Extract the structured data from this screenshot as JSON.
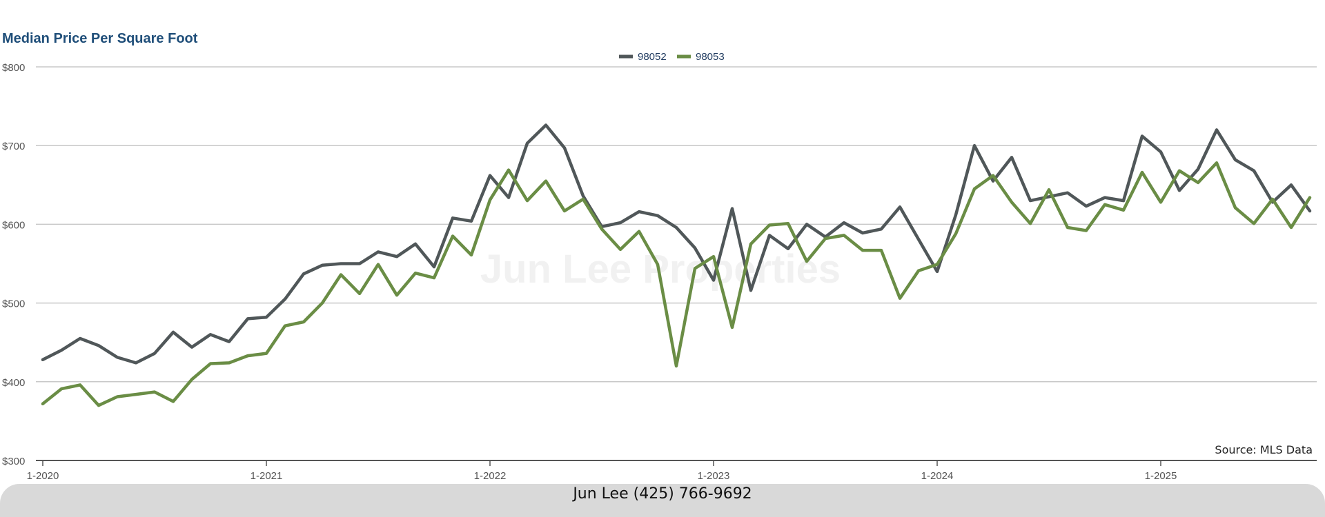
{
  "chart_data": {
    "type": "line",
    "title": "Median Price Per Square Foot",
    "ylim": [
      300,
      800
    ],
    "y_ticks": [
      300,
      400,
      500,
      600,
      700,
      800
    ],
    "y_tick_labels": [
      "$300",
      "$400",
      "$500",
      "$600",
      "$700",
      "$800"
    ],
    "x_tick_labels": [
      "1-2020",
      "1-2021",
      "1-2022",
      "1-2023",
      "1-2024",
      "1-2025"
    ],
    "x_tick_indices": [
      0,
      12,
      24,
      36,
      48,
      60
    ],
    "grid": true,
    "legend": "top-center",
    "x": [
      "1-2020",
      "2-2020",
      "3-2020",
      "4-2020",
      "5-2020",
      "6-2020",
      "7-2020",
      "8-2020",
      "9-2020",
      "10-2020",
      "11-2020",
      "12-2020",
      "1-2021",
      "2-2021",
      "3-2021",
      "4-2021",
      "5-2021",
      "6-2021",
      "7-2021",
      "8-2021",
      "9-2021",
      "10-2021",
      "11-2021",
      "12-2021",
      "1-2022",
      "2-2022",
      "3-2022",
      "4-2022",
      "5-2022",
      "6-2022",
      "7-2022",
      "8-2022",
      "9-2022",
      "10-2022",
      "11-2022",
      "12-2022",
      "1-2023",
      "2-2023",
      "3-2023",
      "4-2023",
      "5-2023",
      "6-2023",
      "7-2023",
      "8-2023",
      "9-2023",
      "10-2023",
      "11-2023",
      "12-2023",
      "1-2024",
      "2-2024",
      "3-2024",
      "4-2024",
      "5-2024",
      "6-2024",
      "7-2024",
      "8-2024",
      "9-2024",
      "10-2024",
      "11-2024",
      "12-2024",
      "1-2025",
      "2-2025",
      "3-2025",
      "4-2025",
      "5-2025",
      "6-2025",
      "7-2025",
      "8-2025",
      "9-2025"
    ],
    "series": [
      {
        "name": "98052",
        "color": "#505759",
        "values": [
          428,
          440,
          455,
          446,
          431,
          424,
          436,
          463,
          444,
          460,
          451,
          480,
          482,
          505,
          537,
          548,
          550,
          550,
          565,
          559,
          575,
          546,
          608,
          604,
          662,
          634,
          703,
          726,
          697,
          636,
          597,
          602,
          616,
          611,
          596,
          570,
          529,
          620,
          516,
          586,
          569,
          600,
          584,
          602,
          589,
          594,
          622,
          581,
          540,
          612,
          700,
          655,
          685,
          630,
          635,
          640,
          623,
          634,
          630,
          712,
          692,
          643,
          670,
          720,
          682,
          668,
          628,
          650,
          617
        ]
      },
      {
        "name": "98053",
        "color": "#6a8d45",
        "values": [
          372,
          391,
          396,
          370,
          381,
          384,
          387,
          375,
          403,
          423,
          424,
          433,
          436,
          471,
          476,
          500,
          536,
          512,
          549,
          510,
          538,
          532,
          585,
          561,
          631,
          669,
          630,
          655,
          617,
          632,
          594,
          568,
          591,
          549,
          420,
          544,
          559,
          469,
          575,
          599,
          601,
          553,
          582,
          586,
          567,
          567,
          506,
          541,
          549,
          588,
          645,
          662,
          628,
          601,
          644,
          596,
          592,
          625,
          618,
          666,
          628,
          668,
          653,
          678,
          621,
          601,
          632,
          596,
          634
        ]
      }
    ],
    "annotations": [
      "Source: MLS Data"
    ],
    "watermark": "Jun Lee Properties"
  },
  "footer": {
    "contact": "Jun Lee (425) 766-9692"
  },
  "colors": {
    "title": "#1f4e79",
    "grid": "#c8c8c8",
    "axis": "#555555",
    "footer_bg": "#d9d9d9"
  }
}
